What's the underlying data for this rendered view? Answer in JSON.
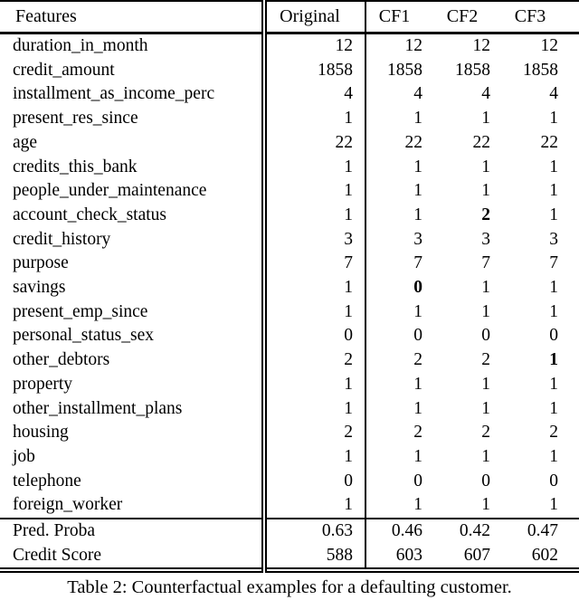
{
  "colors": {
    "text": "#000000",
    "background": "#ffffff",
    "rule": "#000000"
  },
  "header": {
    "feature_col": "Features",
    "value_cols": [
      "Original",
      "CF1",
      "CF2",
      "CF3"
    ]
  },
  "rows": [
    {
      "feature": "duration_in_month",
      "values": [
        "12",
        "12",
        "12",
        "12"
      ],
      "bold": []
    },
    {
      "feature": "credit_amount",
      "values": [
        "1858",
        "1858",
        "1858",
        "1858"
      ],
      "bold": []
    },
    {
      "feature": "installment_as_income_perc",
      "values": [
        "4",
        "4",
        "4",
        "4"
      ],
      "bold": []
    },
    {
      "feature": "present_res_since",
      "values": [
        "1",
        "1",
        "1",
        "1"
      ],
      "bold": []
    },
    {
      "feature": "age",
      "values": [
        "22",
        "22",
        "22",
        "22"
      ],
      "bold": []
    },
    {
      "feature": "credits_this_bank",
      "values": [
        "1",
        "1",
        "1",
        "1"
      ],
      "bold": []
    },
    {
      "feature": "people_under_maintenance",
      "values": [
        "1",
        "1",
        "1",
        "1"
      ],
      "bold": []
    },
    {
      "feature": "account_check_status",
      "values": [
        "1",
        "1",
        "2",
        "1"
      ],
      "bold": [
        2
      ]
    },
    {
      "feature": "credit_history",
      "values": [
        "3",
        "3",
        "3",
        "3"
      ],
      "bold": []
    },
    {
      "feature": "purpose",
      "values": [
        "7",
        "7",
        "7",
        "7"
      ],
      "bold": []
    },
    {
      "feature": "savings",
      "values": [
        "1",
        "0",
        "1",
        "1"
      ],
      "bold": [
        1
      ]
    },
    {
      "feature": "present_emp_since",
      "values": [
        "1",
        "1",
        "1",
        "1"
      ],
      "bold": []
    },
    {
      "feature": "personal_status_sex",
      "values": [
        "0",
        "0",
        "0",
        "0"
      ],
      "bold": []
    },
    {
      "feature": "other_debtors",
      "values": [
        "2",
        "2",
        "2",
        "1"
      ],
      "bold": [
        3
      ]
    },
    {
      "feature": "property",
      "values": [
        "1",
        "1",
        "1",
        "1"
      ],
      "bold": []
    },
    {
      "feature": "other_installment_plans",
      "values": [
        "1",
        "1",
        "1",
        "1"
      ],
      "bold": []
    },
    {
      "feature": "housing",
      "values": [
        "2",
        "2",
        "2",
        "2"
      ],
      "bold": []
    },
    {
      "feature": "job",
      "values": [
        "1",
        "1",
        "1",
        "1"
      ],
      "bold": []
    },
    {
      "feature": "telephone",
      "values": [
        "0",
        "0",
        "0",
        "0"
      ],
      "bold": []
    },
    {
      "feature": "foreign_worker",
      "values": [
        "1",
        "1",
        "1",
        "1"
      ],
      "bold": []
    }
  ],
  "summary_rows": [
    {
      "feature": "Pred. Proba",
      "values": [
        "0.63",
        "0.46",
        "0.42",
        "0.47"
      ],
      "bold": []
    },
    {
      "feature": "Credit Score",
      "values": [
        "588",
        "603",
        "607",
        "602"
      ],
      "bold": []
    }
  ],
  "caption": "Table 2: Counterfactual examples for a defaulting customer."
}
